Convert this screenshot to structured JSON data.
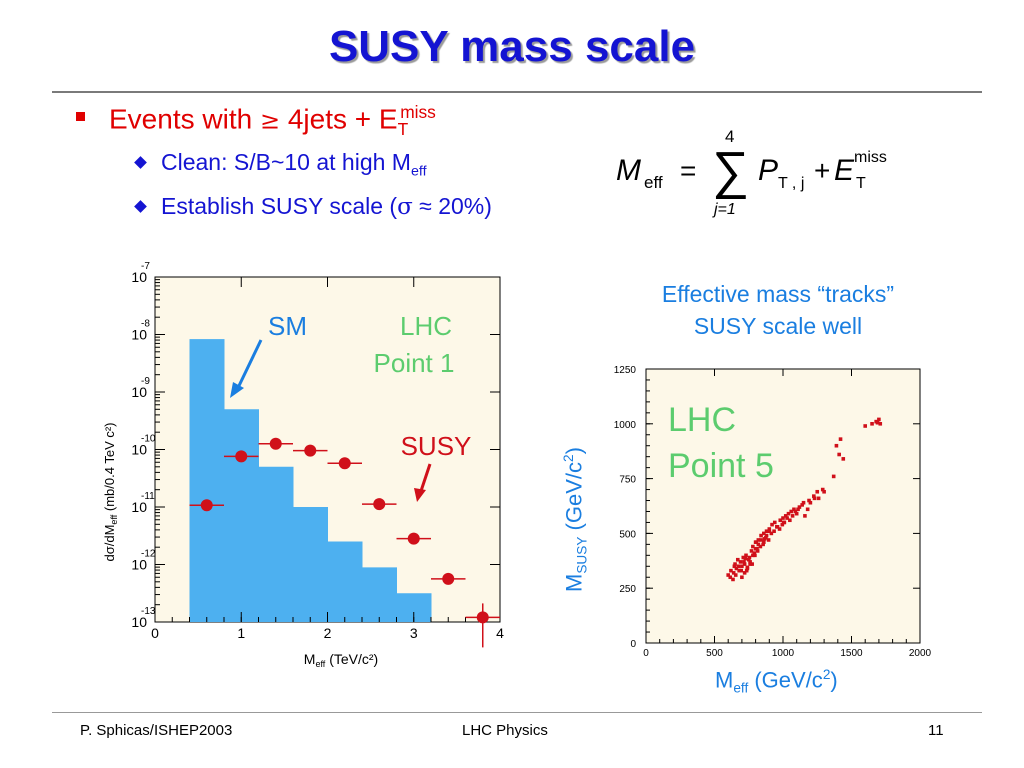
{
  "slide": {
    "title": "SUSY mass scale",
    "bullet": {
      "text_a": "Events with ",
      "ge": "≥",
      "text_b": " 4jets + E",
      "sub": "T",
      "sup": "miss"
    },
    "subbullets": [
      {
        "text": "Clean: S/B~10 at high M",
        "sub": "eff"
      },
      {
        "text_a": "Establish SUSY scale (",
        "sigma": "σ",
        "approx": " ≈ ",
        "text_b": "20%)"
      }
    ],
    "equation": {
      "lhs": "M",
      "lhs_sub": "eff",
      "eq": "=",
      "sum": "∑",
      "upper": "4",
      "lower": "j=1",
      "p": "P",
      "p_sub": "T , j",
      "plus": "+",
      "e": "E",
      "e_sub": "T",
      "e_sup": "miss"
    },
    "caption": [
      "Effective mass “tracks”",
      "SUSY scale well"
    ],
    "footer": {
      "left": "P. Sphicas/ISHEP2003",
      "center": "LHC Physics",
      "right": "11"
    }
  },
  "colors": {
    "title": "#1414d2",
    "bullet": "#e00000",
    "sub": "#1414d2",
    "accent": "#1a7ee0",
    "sm_fill": "#4db0f0",
    "susy": "#d0101a",
    "panel_bg": "#fdf8e8",
    "label_green": "#5ccc6e"
  },
  "chart_data": [
    {
      "type": "bar",
      "xlabel": "M",
      "xlabel_sub": "eff",
      "xlabel_units": " (TeV/c²)",
      "ylabel": "dσ/dM",
      "ylabel_sub": "eff",
      "ylabel_units": " (mb/0.4 TeV c²)",
      "xlim": [
        0,
        4
      ],
      "ylim_log10": [
        -13,
        -7
      ],
      "log_y": true,
      "xticks": [
        "0",
        "1",
        "2",
        "3",
        "4"
      ],
      "yticks_exp": [
        "-7",
        "-8",
        "-9",
        "-10",
        "-11",
        "-12",
        "-13"
      ],
      "ytick_base": "10",
      "labels": {
        "sm": "SM",
        "lhc": "LHC",
        "point": "Point 1",
        "susy": "SUSY"
      },
      "sm_histogram": {
        "bins": [
          [
            0.4,
            0.8
          ],
          [
            0.8,
            1.2
          ],
          [
            1.2,
            1.6
          ],
          [
            1.6,
            2.0
          ],
          [
            2.0,
            2.4
          ],
          [
            2.4,
            2.8
          ],
          [
            2.8,
            3.2
          ]
        ],
        "values_log10": [
          -8.08,
          -9.3,
          -10.3,
          -11.0,
          -11.6,
          -12.05,
          -12.5
        ]
      },
      "susy_points": {
        "x": [
          0.6,
          1.0,
          1.4,
          1.8,
          2.2,
          2.6,
          3.0,
          3.4,
          3.8
        ],
        "y_log10": [
          -10.97,
          -10.12,
          -9.9,
          -10.02,
          -10.24,
          -10.95,
          -11.55,
          -12.25,
          -12.92
        ],
        "xerr": 0.2
      }
    },
    {
      "type": "scatter",
      "xlabel": "M",
      "xlabel_sub": "eff",
      "xlabel_units": " (GeV/c",
      "xlabel_sup": "2",
      "xlabel_close": ")",
      "ylabel": "M",
      "ylabel_sub": "SUSY",
      "ylabel_units": " (GeV/c",
      "ylabel_sup": "2",
      "ylabel_close": ")",
      "xlim": [
        0,
        2000
      ],
      "ylim": [
        0,
        1250
      ],
      "xticks": [
        "0",
        "500",
        "1000",
        "1500",
        "2000"
      ],
      "yticks": [
        "0",
        "250",
        "500",
        "750",
        "1000",
        "1250"
      ],
      "labels": {
        "lhc": "LHC",
        "point": "Point 5"
      },
      "points": {
        "x": [
          615,
          640,
          660,
          680,
          700,
          720,
          740,
          760,
          650,
          670,
          690,
          710,
          730,
          750,
          770,
          790,
          810,
          700,
          720,
          740,
          760,
          780,
          800,
          820,
          840,
          860,
          880,
          900,
          780,
          800,
          820,
          840,
          860,
          880,
          900,
          920,
          940,
          960,
          980,
          1000,
          1020,
          1040,
          1060,
          1080,
          1100,
          1120,
          1140,
          1160,
          1180,
          1200,
          1230,
          1250,
          1370,
          1410,
          1390,
          1420,
          1440,
          1600,
          1650,
          1680,
          1700,
          1690,
          1710,
          635,
          655,
          675,
          695,
          715,
          735,
          755,
          775,
          795,
          815,
          835,
          855,
          875,
          895,
          915,
          935,
          955,
          975,
          995,
          1010,
          1030,
          1050,
          1070,
          1090,
          1110,
          1150,
          1190,
          1225,
          1260,
          1290,
          1300,
          620,
          600,
          645,
          725,
          805,
          865,
          1005
        ],
        "y": [
          300,
          320,
          340,
          330,
          350,
          360,
          345,
          370,
          360,
          380,
          370,
          390,
          400,
          380,
          420,
          410,
          430,
          300,
          320,
          340,
          360,
          400,
          430,
          450,
          470,
          460,
          490,
          510,
          440,
          460,
          470,
          490,
          500,
          510,
          520,
          540,
          550,
          530,
          560,
          570,
          580,
          590,
          600,
          610,
          590,
          620,
          630,
          580,
          610,
          640,
          660,
          690,
          760,
          860,
          900,
          930,
          840,
          990,
          1000,
          1010,
          1020,
          1005,
          1000,
          290,
          310,
          350,
          330,
          370,
          330,
          390,
          360,
          400,
          420,
          440,
          450,
          480,
          470,
          500,
          510,
          530,
          520,
          540,
          550,
          570,
          560,
          580,
          600,
          610,
          640,
          650,
          670,
          660,
          700,
          690,
          330,
          310,
          350,
          385,
          460,
          475,
          550
        ]
      }
    }
  ]
}
